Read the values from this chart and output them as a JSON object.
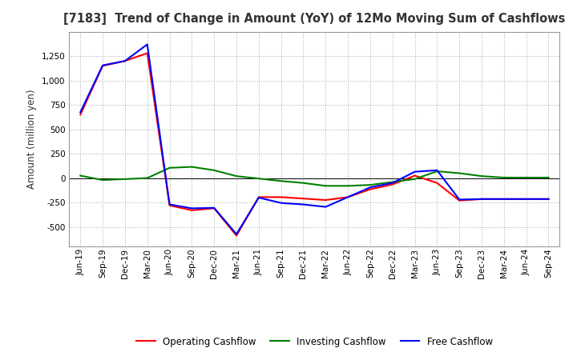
{
  "title": "[7183]  Trend of Change in Amount (YoY) of 12Mo Moving Sum of Cashflows",
  "ylabel": "Amount (million yen)",
  "background_color": "#ffffff",
  "grid_color": "#aaaaaa",
  "x_labels": [
    "Jun-19",
    "Sep-19",
    "Dec-19",
    "Mar-20",
    "Jun-20",
    "Sep-20",
    "Dec-20",
    "Mar-21",
    "Jun-21",
    "Sep-21",
    "Dec-21",
    "Mar-22",
    "Jun-22",
    "Sep-22",
    "Dec-22",
    "Mar-23",
    "Jun-23",
    "Sep-23",
    "Dec-23",
    "Mar-24",
    "Jun-24",
    "Sep-24"
  ],
  "operating_cashflow": [
    650,
    1150,
    1200,
    1280,
    -280,
    -330,
    -310,
    -590,
    -195,
    -195,
    -210,
    -225,
    -195,
    -115,
    -65,
    25,
    -50,
    -230,
    -215,
    -215,
    -215,
    -215
  ],
  "investing_cashflow": [
    25,
    -20,
    -10,
    0,
    105,
    115,
    80,
    20,
    -5,
    -30,
    -50,
    -80,
    -80,
    -70,
    -40,
    -10,
    70,
    50,
    20,
    5,
    5,
    5
  ],
  "free_cashflow": [
    675,
    1155,
    1200,
    1370,
    -270,
    -310,
    -305,
    -575,
    -200,
    -255,
    -270,
    -295,
    -195,
    -95,
    -50,
    65,
    80,
    -220,
    -215,
    -215,
    -215,
    -215
  ],
  "ylim": [
    -700,
    1500
  ],
  "yticks": [
    -500,
    -250,
    0,
    250,
    500,
    750,
    1000,
    1250
  ],
  "operating_color": "#ff0000",
  "investing_color": "#008000",
  "free_color": "#0000ff",
  "line_width": 1.5,
  "title_color": "#333333",
  "title_fontsize": 10.5,
  "axis_label_fontsize": 8.5,
  "tick_fontsize": 7.5
}
